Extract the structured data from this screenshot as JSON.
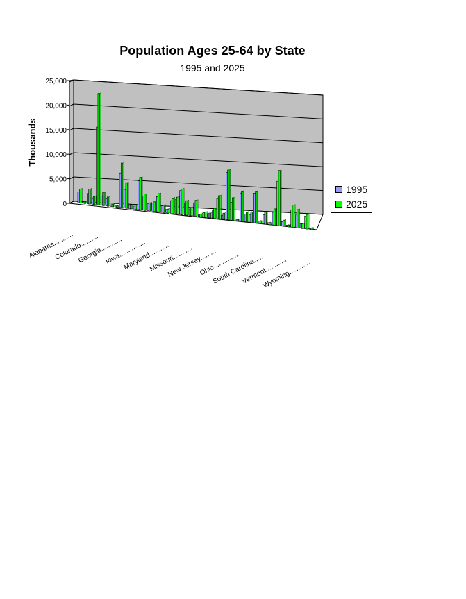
{
  "chart_data": {
    "type": "bar",
    "title": "Population Ages 25-64 by State",
    "subtitle": "1995 and 2025",
    "ylabel": "Thousands",
    "xlabel": "",
    "ylim": [
      0,
      25000
    ],
    "yticks": [
      "0",
      "5,000",
      "10,000",
      "15,000",
      "20,000",
      "25,000"
    ],
    "grid": true,
    "legend": "right",
    "x_tick_labels": [
      "Alabama............",
      "Colorado..........",
      "Georgia............",
      "Iowa...............",
      "Maryland...........",
      "Missouri...........",
      "New Jersey.........",
      "Ohio...............",
      "South Carolina.....",
      "Vermont............",
      "Wyoming............"
    ],
    "series": [
      {
        "name": "1995",
        "color": "#9999ff",
        "values": [
          2200,
          300,
          2100,
          1300,
          16000,
          1900,
          1600,
          350,
          200,
          7100,
          3800,
          650,
          600,
          5900,
          2900,
          1400,
          1700,
          3100,
          1300,
          700,
          2600,
          3000,
          4900,
          2400,
          1350,
          2700,
          450,
          900,
          800,
          1500,
          4200,
          800,
          9700,
          3700,
          330,
          5800,
          1600,
          1600,
          6100,
          500,
          1900,
          360,
          2600,
          9100,
          900,
          300,
          3500,
          2600,
          900,
          2600,
          250
        ]
      },
      {
        "name": "2025",
        "color": "#00ff00",
        "values": [
          2900,
          450,
          3100,
          1700,
          23000,
          2700,
          1900,
          500,
          300,
          9200,
          5300,
          900,
          900,
          6700,
          3400,
          1700,
          2000,
          3800,
          1500,
          850,
          3200,
          3500,
          5300,
          3000,
          1700,
          3300,
          600,
          1100,
          1000,
          2100,
          4800,
          1300,
          10300,
          4700,
          350,
          6300,
          2100,
          2200,
          6600,
          550,
          2500,
          430,
          3400,
          11400,
          1300,
          370,
          4600,
          3800,
          1000,
          3000,
          290
        ]
      }
    ]
  },
  "legend": {
    "items": [
      {
        "label": "1995",
        "color": "#9999ff"
      },
      {
        "label": "2025",
        "color": "#00ff00"
      }
    ]
  }
}
